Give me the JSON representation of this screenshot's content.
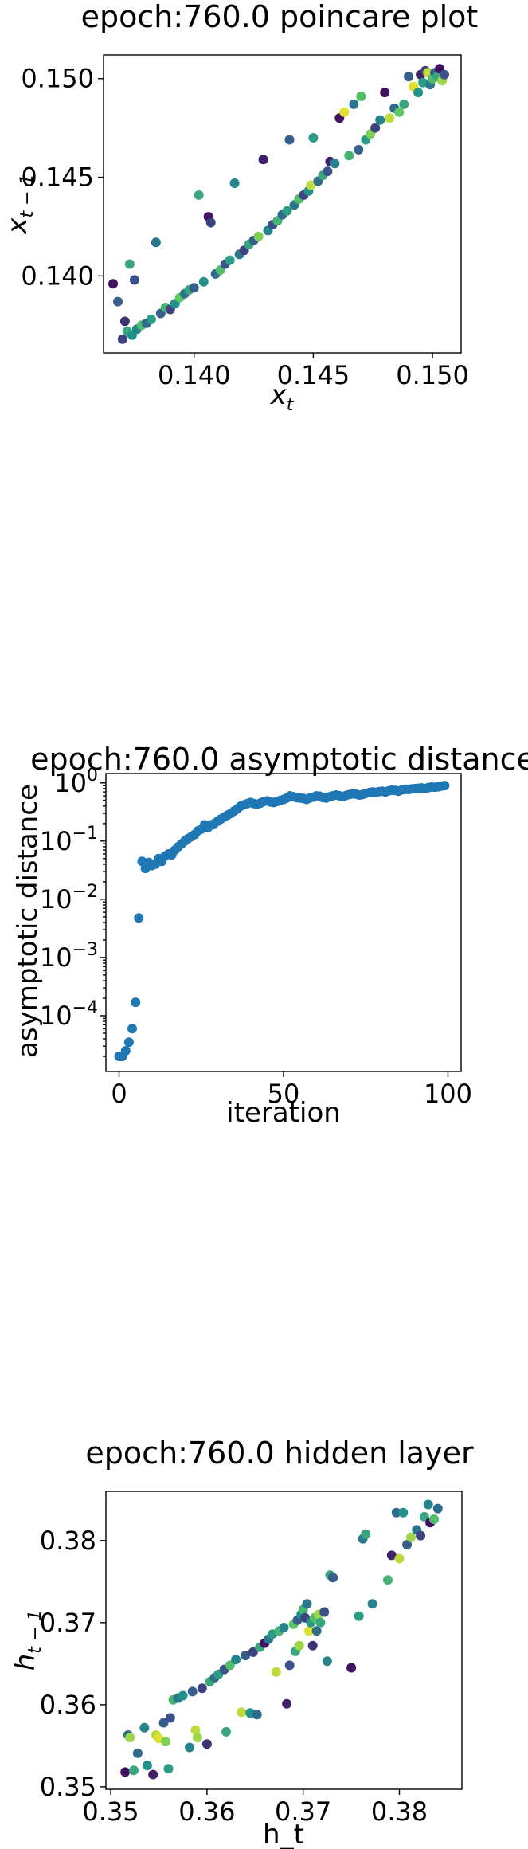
{
  "chart_data": [
    {
      "type": "scatter",
      "title": "epoch:760.0 poincare plot",
      "xlabel_main": "x",
      "xlabel_sub": "t",
      "ylabel_main": "x",
      "ylabel_sub": "t − 1",
      "xlim": [
        0.1362,
        0.1512
      ],
      "ylim": [
        0.1361,
        0.1512
      ],
      "xticks": [
        0.14,
        0.145,
        0.15
      ],
      "xtick_labels": [
        "0.140",
        "0.145",
        "0.150"
      ],
      "yticks": [
        0.14,
        0.145,
        0.15
      ],
      "ytick_labels": [
        "0.140",
        "0.145",
        "0.150"
      ],
      "colormap": [
        "#440154",
        "#3b528b",
        "#21918c",
        "#5ec962",
        "#fde725"
      ],
      "points": [
        [
          0.1366,
          0.1396,
          0.05
        ],
        [
          0.1368,
          0.1387,
          0.3
        ],
        [
          0.137,
          0.1368,
          0.2
        ],
        [
          0.1371,
          0.1377,
          0.15
        ],
        [
          0.1372,
          0.1372,
          0.6
        ],
        [
          0.1373,
          0.1406,
          0.6
        ],
        [
          0.1374,
          0.137,
          0.5
        ],
        [
          0.1375,
          0.1398,
          0.25
        ],
        [
          0.1376,
          0.1373,
          0.45
        ],
        [
          0.1378,
          0.1375,
          0.7
        ],
        [
          0.138,
          0.1376,
          0.35
        ],
        [
          0.1382,
          0.1378,
          0.55
        ],
        [
          0.1384,
          0.1417,
          0.4
        ],
        [
          0.1386,
          0.1381,
          0.3
        ],
        [
          0.1388,
          0.1384,
          0.65
        ],
        [
          0.139,
          0.1383,
          0.2
        ],
        [
          0.1392,
          0.1386,
          0.5
        ],
        [
          0.1394,
          0.1389,
          0.75
        ],
        [
          0.1396,
          0.1391,
          0.4
        ],
        [
          0.1398,
          0.1393,
          0.6
        ],
        [
          0.14,
          0.1394,
          0.3
        ],
        [
          0.1402,
          0.1441,
          0.6
        ],
        [
          0.1404,
          0.1397,
          0.5
        ],
        [
          0.1406,
          0.143,
          0.05
        ],
        [
          0.1407,
          0.1427,
          0.2
        ],
        [
          0.1409,
          0.1401,
          0.35
        ],
        [
          0.1411,
          0.1403,
          0.7
        ],
        [
          0.1413,
          0.1406,
          0.25
        ],
        [
          0.1415,
          0.1408,
          0.55
        ],
        [
          0.1417,
          0.1447,
          0.45
        ],
        [
          0.1419,
          0.1411,
          0.4
        ],
        [
          0.1421,
          0.1413,
          0.2
        ],
        [
          0.1423,
          0.1416,
          0.6
        ],
        [
          0.1425,
          0.1418,
          0.3
        ],
        [
          0.1427,
          0.142,
          0.8
        ],
        [
          0.1429,
          0.1459,
          0.1
        ],
        [
          0.1431,
          0.1423,
          0.45
        ],
        [
          0.1433,
          0.1426,
          0.25
        ],
        [
          0.1435,
          0.1428,
          0.65
        ],
        [
          0.1437,
          0.1431,
          0.35
        ],
        [
          0.1439,
          0.1433,
          0.55
        ],
        [
          0.144,
          0.1469,
          0.3
        ],
        [
          0.1442,
          0.1436,
          0.4
        ],
        [
          0.1444,
          0.1439,
          0.7
        ],
        [
          0.1446,
          0.1441,
          0.2
        ],
        [
          0.1448,
          0.1443,
          0.5
        ],
        [
          0.1449,
          0.1446,
          0.9
        ],
        [
          0.145,
          0.147,
          0.55
        ],
        [
          0.1452,
          0.1448,
          0.35
        ],
        [
          0.1454,
          0.1451,
          0.6
        ],
        [
          0.1456,
          0.1453,
          0.25
        ],
        [
          0.1457,
          0.1458,
          0.1
        ],
        [
          0.1459,
          0.1457,
          0.45
        ],
        [
          0.1461,
          0.148,
          0.05
        ],
        [
          0.1463,
          0.1483,
          0.95
        ],
        [
          0.1465,
          0.1461,
          0.65
        ],
        [
          0.1467,
          0.1487,
          0.4
        ],
        [
          0.1469,
          0.1464,
          0.3
        ],
        [
          0.147,
          0.1491,
          0.7
        ],
        [
          0.1472,
          0.1469,
          0.55
        ],
        [
          0.1474,
          0.1472,
          0.8
        ],
        [
          0.1476,
          0.1475,
          0.2
        ],
        [
          0.1478,
          0.1479,
          0.45
        ],
        [
          0.148,
          0.1493,
          0.05
        ],
        [
          0.1482,
          0.148,
          0.9
        ],
        [
          0.1484,
          0.1485,
          0.35
        ],
        [
          0.1486,
          0.1483,
          0.75
        ],
        [
          0.1488,
          0.1487,
          0.6
        ],
        [
          0.149,
          0.1501,
          0.3
        ],
        [
          0.1492,
          0.1496,
          0.95
        ],
        [
          0.1494,
          0.1493,
          0.5
        ],
        [
          0.1495,
          0.1502,
          0.1
        ],
        [
          0.1496,
          0.1498,
          0.55
        ],
        [
          0.1497,
          0.1504,
          0.2
        ],
        [
          0.1498,
          0.1503,
          0.9
        ],
        [
          0.1499,
          0.1497,
          0.4
        ],
        [
          0.15,
          0.15,
          0.7
        ],
        [
          0.1501,
          0.1503,
          0.3
        ],
        [
          0.1502,
          0.1501,
          0.6
        ],
        [
          0.1503,
          0.1505,
          0.05
        ],
        [
          0.1504,
          0.1499,
          0.85
        ],
        [
          0.1505,
          0.1502,
          0.25
        ]
      ]
    },
    {
      "type": "scatter",
      "title": "epoch:760.0 asymptotic distance",
      "xlabel": "iteration",
      "ylabel": "asymptotic distance",
      "yscale": "log",
      "xlim": [
        -4,
        104
      ],
      "ylim": [
        1.1e-05,
        1.45
      ],
      "xticks": [
        0,
        50,
        100
      ],
      "xtick_labels": [
        "0",
        "50",
        "100"
      ],
      "yticks": [
        0.0001,
        0.001,
        0.01,
        0.1,
        1
      ],
      "ytick_labels": [
        {
          "base": "10",
          "exp": "−4"
        },
        {
          "base": "10",
          "exp": "−3"
        },
        {
          "base": "10",
          "exp": "−2"
        },
        {
          "base": "10",
          "exp": "−1"
        },
        {
          "base": "10",
          "exp": "0"
        }
      ],
      "color": "#1f77b4",
      "x": [
        0,
        1,
        2,
        3,
        4,
        5,
        6,
        7,
        8,
        9,
        10,
        11,
        12,
        13,
        14,
        15,
        16,
        17,
        18,
        19,
        20,
        21,
        22,
        23,
        24,
        25,
        26,
        27,
        28,
        29,
        30,
        31,
        32,
        33,
        34,
        35,
        36,
        37,
        38,
        39,
        40,
        41,
        42,
        43,
        44,
        45,
        46,
        47,
        48,
        49,
        50,
        51,
        52,
        53,
        54,
        55,
        56,
        57,
        58,
        59,
        60,
        61,
        62,
        63,
        64,
        65,
        66,
        67,
        68,
        69,
        70,
        71,
        72,
        73,
        74,
        75,
        76,
        77,
        78,
        79,
        80,
        81,
        82,
        83,
        84,
        85,
        86,
        87,
        88,
        89,
        90,
        91,
        92,
        93,
        94,
        95,
        96,
        97,
        98,
        99
      ],
      "values": [
        2e-05,
        2e-05,
        2.5e-05,
        3.5e-05,
        6e-05,
        0.00017,
        0.0048,
        0.045,
        0.034,
        0.043,
        0.038,
        0.04,
        0.05,
        0.045,
        0.055,
        0.06,
        0.058,
        0.07,
        0.08,
        0.09,
        0.1,
        0.11,
        0.12,
        0.13,
        0.15,
        0.16,
        0.19,
        0.17,
        0.19,
        0.2,
        0.22,
        0.24,
        0.26,
        0.28,
        0.3,
        0.33,
        0.36,
        0.4,
        0.42,
        0.44,
        0.46,
        0.44,
        0.43,
        0.45,
        0.48,
        0.49,
        0.47,
        0.46,
        0.48,
        0.5,
        0.52,
        0.55,
        0.6,
        0.58,
        0.56,
        0.55,
        0.54,
        0.52,
        0.55,
        0.57,
        0.6,
        0.59,
        0.56,
        0.55,
        0.58,
        0.6,
        0.62,
        0.6,
        0.58,
        0.61,
        0.63,
        0.65,
        0.64,
        0.62,
        0.63,
        0.66,
        0.68,
        0.7,
        0.69,
        0.71,
        0.72,
        0.7,
        0.73,
        0.75,
        0.74,
        0.72,
        0.76,
        0.78,
        0.77,
        0.79,
        0.8,
        0.81,
        0.82,
        0.8,
        0.83,
        0.85,
        0.84,
        0.86,
        0.88,
        0.9
      ]
    },
    {
      "type": "scatter",
      "title": "epoch:760.0 hidden layer",
      "xlabel": "h_t",
      "ylabel_main": "h",
      "ylabel_sub": "t − 1",
      "xlim": [
        0.3495,
        0.3865
      ],
      "ylim": [
        0.3497,
        0.386
      ],
      "xticks": [
        0.35,
        0.36,
        0.37,
        0.38
      ],
      "xtick_labels": [
        "0.35",
        "0.36",
        "0.37",
        "0.38"
      ],
      "yticks": [
        0.35,
        0.36,
        0.37,
        0.38
      ],
      "ytick_labels": [
        "0.35",
        "0.36",
        "0.37",
        "0.38"
      ],
      "colormap": [
        "#440154",
        "#3b528b",
        "#21918c",
        "#5ec962",
        "#fde725"
      ],
      "points": [
        [
          0.3515,
          0.3518,
          0.05
        ],
        [
          0.3518,
          0.3563,
          0.4
        ],
        [
          0.352,
          0.356,
          0.85
        ],
        [
          0.3524,
          0.352,
          0.6
        ],
        [
          0.3528,
          0.3541,
          0.35
        ],
        [
          0.3535,
          0.3572,
          0.45
        ],
        [
          0.3538,
          0.3526,
          0.5
        ],
        [
          0.3544,
          0.3515,
          0.1
        ],
        [
          0.3547,
          0.3563,
          0.9
        ],
        [
          0.355,
          0.3559,
          0.95
        ],
        [
          0.3555,
          0.3578,
          0.3
        ],
        [
          0.3557,
          0.3555,
          0.8
        ],
        [
          0.356,
          0.3522,
          0.55
        ],
        [
          0.3562,
          0.3584,
          0.25
        ],
        [
          0.3565,
          0.3606,
          0.65
        ],
        [
          0.357,
          0.3608,
          0.4
        ],
        [
          0.3575,
          0.3611,
          0.5
        ],
        [
          0.3582,
          0.3548,
          0.45
        ],
        [
          0.3585,
          0.3616,
          0.3
        ],
        [
          0.3588,
          0.3569,
          0.9
        ],
        [
          0.359,
          0.356,
          0.85
        ],
        [
          0.3595,
          0.362,
          0.2
        ],
        [
          0.36,
          0.3552,
          0.15
        ],
        [
          0.3603,
          0.3628,
          0.6
        ],
        [
          0.3608,
          0.3633,
          0.35
        ],
        [
          0.3612,
          0.3637,
          0.55
        ],
        [
          0.3618,
          0.3643,
          0.25
        ],
        [
          0.362,
          0.3567,
          0.6
        ],
        [
          0.3624,
          0.3648,
          0.7
        ],
        [
          0.363,
          0.3655,
          0.45
        ],
        [
          0.3636,
          0.3591,
          0.9
        ],
        [
          0.364,
          0.366,
          0.3
        ],
        [
          0.3645,
          0.359,
          0.5
        ],
        [
          0.3648,
          0.3664,
          0.2
        ],
        [
          0.3652,
          0.3588,
          0.35
        ],
        [
          0.3655,
          0.367,
          0.6
        ],
        [
          0.366,
          0.3675,
          0.05
        ],
        [
          0.3664,
          0.368,
          0.4
        ],
        [
          0.3668,
          0.3686,
          0.55
        ],
        [
          0.3672,
          0.364,
          0.9
        ],
        [
          0.3675,
          0.369,
          0.65
        ],
        [
          0.368,
          0.3694,
          0.45
        ],
        [
          0.3683,
          0.3601,
          0.1
        ],
        [
          0.3686,
          0.3648,
          0.25
        ],
        [
          0.369,
          0.3698,
          0.75
        ],
        [
          0.3692,
          0.3665,
          0.6
        ],
        [
          0.3694,
          0.3703,
          0.3
        ],
        [
          0.3696,
          0.3672,
          0.85
        ],
        [
          0.3698,
          0.371,
          0.5
        ],
        [
          0.37,
          0.3716,
          0.65
        ],
        [
          0.3702,
          0.3706,
          0.2
        ],
        [
          0.3704,
          0.3723,
          0.4
        ],
        [
          0.3706,
          0.369,
          0.95
        ],
        [
          0.3708,
          0.37,
          0.55
        ],
        [
          0.371,
          0.3672,
          0.15
        ],
        [
          0.3712,
          0.3706,
          0.7
        ],
        [
          0.3714,
          0.369,
          0.35
        ],
        [
          0.3716,
          0.371,
          0.85
        ],
        [
          0.3718,
          0.37,
          0.6
        ],
        [
          0.3722,
          0.3713,
          0.25
        ],
        [
          0.3725,
          0.3653,
          0.45
        ],
        [
          0.3728,
          0.3758,
          0.6
        ],
        [
          0.3731,
          0.3755,
          0.3
        ],
        [
          0.375,
          0.3645,
          0.05
        ],
        [
          0.3758,
          0.3708,
          0.55
        ],
        [
          0.3762,
          0.3802,
          0.4
        ],
        [
          0.3765,
          0.3808,
          0.6
        ],
        [
          0.3772,
          0.3723,
          0.45
        ],
        [
          0.3788,
          0.3752,
          0.65
        ],
        [
          0.3792,
          0.3782,
          0.1
        ],
        [
          0.3797,
          0.3834,
          0.35
        ],
        [
          0.38,
          0.3778,
          0.9
        ],
        [
          0.3804,
          0.3834,
          0.5
        ],
        [
          0.3808,
          0.3795,
          0.3
        ],
        [
          0.3812,
          0.3804,
          0.85
        ],
        [
          0.3818,
          0.3813,
          0.4
        ],
        [
          0.3822,
          0.3806,
          0.2
        ],
        [
          0.3826,
          0.3829,
          0.6
        ],
        [
          0.383,
          0.3844,
          0.45
        ],
        [
          0.3832,
          0.3822,
          0.05
        ],
        [
          0.3836,
          0.3826,
          0.7
        ],
        [
          0.384,
          0.3839,
          0.35
        ]
      ]
    }
  ]
}
